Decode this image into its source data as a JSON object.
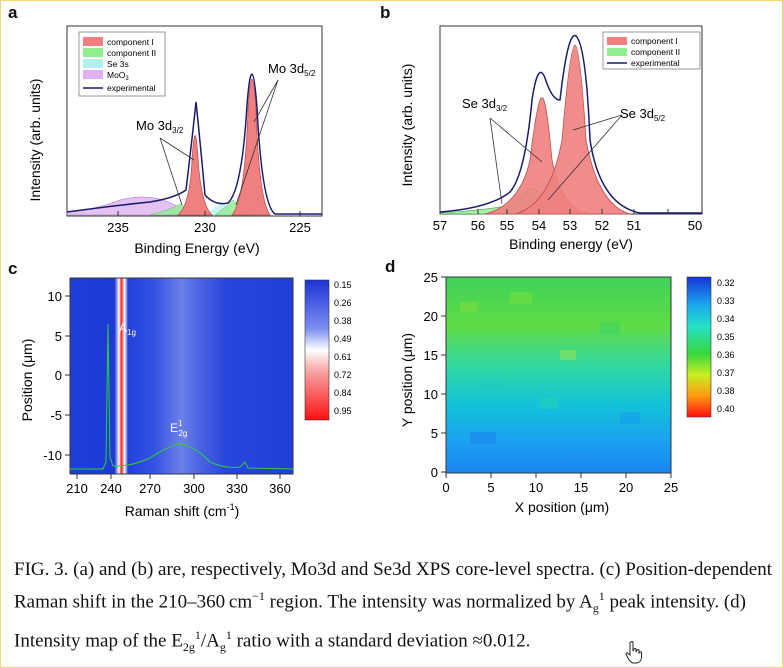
{
  "panels": {
    "a": {
      "letter": "a",
      "ylabel": "Intensity (arb. units)",
      "xlabel": "Binding Energy (eV)",
      "xticks": [
        "235",
        "230",
        "225"
      ],
      "legend": [
        {
          "label": "component I",
          "color": "#f08080"
        },
        {
          "label": "component II",
          "color": "#90ee90"
        },
        {
          "label": "Se 3s",
          "color": "#b0f0f0"
        },
        {
          "label": "MoO",
          "sub": "3",
          "color": "#e0b0f0"
        },
        {
          "label": "experimental",
          "color": "#1a1a6e"
        }
      ],
      "annotations": [
        {
          "main": "Mo 3d",
          "sub": "5/2"
        },
        {
          "main": "Mo 3d",
          "sub": "3/2"
        }
      ]
    },
    "b": {
      "letter": "b",
      "ylabel": "Intensity (arb. units)",
      "xlabel": "Binding energy (eV)",
      "xticks": [
        "57",
        "56",
        "55",
        "54",
        "53",
        "52",
        "51",
        "50"
      ],
      "legend": [
        {
          "label": "component I",
          "color": "#f08080"
        },
        {
          "label": "component II",
          "color": "#90ee90"
        },
        {
          "label": "experimental",
          "color": "#1a1a6e"
        }
      ],
      "annotations": [
        {
          "main": "Se 3d",
          "sub": "3/2"
        },
        {
          "main": "Se 3d",
          "sub": "5/2"
        }
      ]
    },
    "c": {
      "letter": "c",
      "ylabel": "Position (μm)",
      "xlabel": "Raman shift (cm",
      "xlabel_sup": "-1",
      "xlabel_end": ")",
      "xticks": [
        "210",
        "240",
        "270",
        "300",
        "330",
        "360"
      ],
      "yticks": [
        "10",
        "5",
        "0",
        "-5",
        "-10"
      ],
      "peak1": {
        "main": "A",
        "sub": "1g"
      },
      "peak2": {
        "main": "E",
        "sup": "1",
        "sub": "2g"
      },
      "colorbar": [
        "0.15",
        "0.26",
        "0.38",
        "0.49",
        "0.61",
        "0.72",
        "0.84",
        "0.95"
      ]
    },
    "d": {
      "letter": "d",
      "ylabel": "Y position (μm)",
      "xlabel": "X position (μm)",
      "xticks": [
        "0",
        "5",
        "10",
        "15",
        "20",
        "25"
      ],
      "yticks": [
        "25",
        "20",
        "15",
        "10",
        "5",
        "0"
      ],
      "colorbar": [
        "0.32",
        "0.33",
        "0.34",
        "0.35",
        "0.36",
        "0.37",
        "0.38",
        "0.40"
      ]
    }
  },
  "caption": {
    "t1": "FIG. 3. (a) and (b) are, respectively, Mo3d and Se3d XPS core-level spectra. (c) Position-dependent Raman shift in the 210–360 cm",
    "t1sup": "−1",
    "t2": " region. The intensity was normalized by A",
    "t2sub": "g",
    "t2sup": "1",
    "t3": " peak intensity. (d) Intensity map of the E",
    "t3sub": "2g",
    "t3sup": "1",
    "t4": "/A",
    "t4sub": "g",
    "t4sup": "1",
    "t5": " ratio with a standard deviation ≈0.012."
  },
  "icons": {
    "cursor": "hand-pointer-icon"
  }
}
